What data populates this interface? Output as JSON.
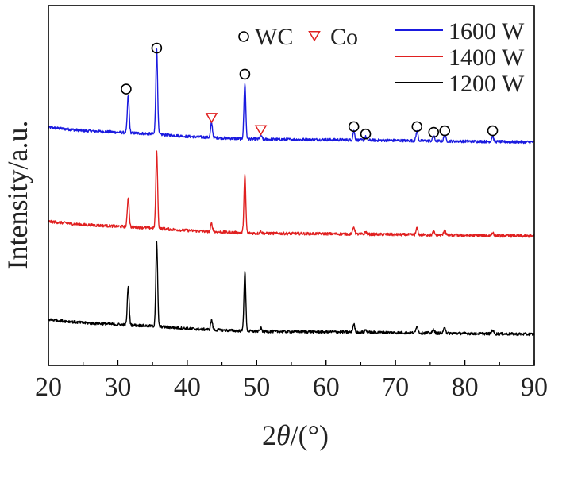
{
  "chart_data": {
    "type": "line",
    "title": "",
    "xlabel_prefix": "2",
    "xlabel_symbol": "θ",
    "xlabel_suffix": "/(°)",
    "ylabel": "Intensity/a.u.",
    "xlim": [
      20,
      90
    ],
    "xticks": [
      "20",
      "30",
      "40",
      "50",
      "60",
      "70",
      "80",
      "90"
    ],
    "grid": false,
    "legend_position": "top-right",
    "peak_legend": [
      {
        "symbol": "circle",
        "label": "WC",
        "color": "#000000"
      },
      {
        "symbol": "triangle-down",
        "label": "Co",
        "color": "#e02020"
      }
    ],
    "series": [
      {
        "name": "1600 W",
        "color": "#1a1adf",
        "offset": 2.35,
        "baseline": [
          [
            20,
            0.16
          ],
          [
            25,
            0.12
          ],
          [
            30,
            0.1
          ],
          [
            35,
            0.08
          ],
          [
            40,
            0.05
          ],
          [
            45,
            0.03
          ],
          [
            50,
            0.015
          ],
          [
            60,
            0.01
          ],
          [
            70,
            0.0
          ],
          [
            80,
            -0.01
          ],
          [
            90,
            -0.02
          ]
        ],
        "peaks": [
          {
            "x": 31.5,
            "h": 0.46
          },
          {
            "x": 35.6,
            "h": 1.03
          },
          {
            "x": 43.5,
            "h": 0.18
          },
          {
            "x": 48.3,
            "h": 0.68
          },
          {
            "x": 50.6,
            "h": 0.05
          },
          {
            "x": 64.0,
            "h": 0.11
          },
          {
            "x": 65.7,
            "h": 0.04
          },
          {
            "x": 73.1,
            "h": 0.12
          },
          {
            "x": 75.5,
            "h": 0.06
          },
          {
            "x": 77.1,
            "h": 0.08
          },
          {
            "x": 84.0,
            "h": 0.07
          }
        ]
      },
      {
        "name": "1400 W",
        "color": "#e02020",
        "offset": 1.2,
        "baseline": [
          [
            20,
            0.16
          ],
          [
            25,
            0.12
          ],
          [
            30,
            0.1
          ],
          [
            35,
            0.08
          ],
          [
            40,
            0.05
          ],
          [
            45,
            0.03
          ],
          [
            50,
            0.015
          ],
          [
            60,
            0.01
          ],
          [
            70,
            0.0
          ],
          [
            80,
            -0.01
          ],
          [
            90,
            -0.02
          ]
        ],
        "peaks": [
          {
            "x": 31.5,
            "h": 0.36
          },
          {
            "x": 35.6,
            "h": 0.93
          },
          {
            "x": 43.5,
            "h": 0.1
          },
          {
            "x": 48.3,
            "h": 0.7
          },
          {
            "x": 50.6,
            "h": 0.03
          },
          {
            "x": 64.0,
            "h": 0.09
          },
          {
            "x": 65.7,
            "h": 0.03
          },
          {
            "x": 73.1,
            "h": 0.08
          },
          {
            "x": 75.5,
            "h": 0.04
          },
          {
            "x": 77.1,
            "h": 0.07
          },
          {
            "x": 84.0,
            "h": 0.04
          }
        ]
      },
      {
        "name": "1200 W",
        "color": "#000000",
        "offset": 0.0,
        "baseline": [
          [
            20,
            0.16
          ],
          [
            25,
            0.12
          ],
          [
            30,
            0.1
          ],
          [
            35,
            0.08
          ],
          [
            40,
            0.05
          ],
          [
            45,
            0.03
          ],
          [
            50,
            0.015
          ],
          [
            60,
            0.01
          ],
          [
            70,
            0.0
          ],
          [
            80,
            -0.01
          ],
          [
            90,
            -0.02
          ]
        ],
        "peaks": [
          {
            "x": 31.5,
            "h": 0.48
          },
          {
            "x": 35.6,
            "h": 1.02
          },
          {
            "x": 43.5,
            "h": 0.12
          },
          {
            "x": 48.3,
            "h": 0.73
          },
          {
            "x": 50.6,
            "h": 0.04
          },
          {
            "x": 64.0,
            "h": 0.1
          },
          {
            "x": 65.7,
            "h": 0.03
          },
          {
            "x": 73.1,
            "h": 0.09
          },
          {
            "x": 75.5,
            "h": 0.05
          },
          {
            "x": 77.1,
            "h": 0.08
          },
          {
            "x": 84.0,
            "h": 0.05
          }
        ]
      }
    ],
    "markers": [
      {
        "type": "circle",
        "x": 31.2,
        "y": 2.98
      },
      {
        "type": "circle",
        "x": 35.6,
        "y": 3.48
      },
      {
        "type": "triangle-down",
        "x": 43.5,
        "y": 2.63
      },
      {
        "type": "circle",
        "x": 48.3,
        "y": 3.16
      },
      {
        "type": "triangle-down",
        "x": 50.6,
        "y": 2.48
      },
      {
        "type": "circle",
        "x": 64.0,
        "y": 2.52
      },
      {
        "type": "circle",
        "x": 65.7,
        "y": 2.43
      },
      {
        "type": "circle",
        "x": 73.1,
        "y": 2.52
      },
      {
        "type": "circle",
        "x": 75.5,
        "y": 2.45
      },
      {
        "type": "circle",
        "x": 77.1,
        "y": 2.47
      },
      {
        "type": "circle",
        "x": 84.0,
        "y": 2.47
      }
    ],
    "ylim": [
      -0.4,
      4.0
    ]
  }
}
